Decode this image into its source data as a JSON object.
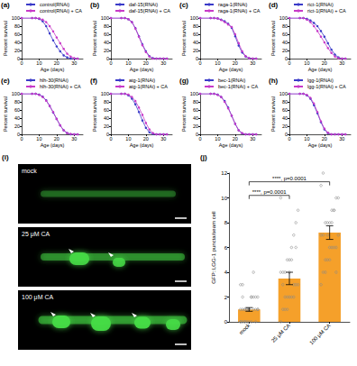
{
  "chart_data": [
    {
      "type": "line",
      "title": "(a)",
      "xlabel": "Age (days)",
      "ylabel": "Percent survival",
      "marker": "circle",
      "legend": "top",
      "x": [
        0,
        6,
        8,
        10,
        12,
        14,
        16,
        18,
        20,
        22,
        24,
        26,
        28,
        30,
        32
      ],
      "xlim": [
        0,
        35
      ],
      "xticks": [
        0,
        10,
        20,
        30
      ],
      "ylim": [
        0,
        100
      ],
      "yticks": [
        0,
        20,
        40,
        60,
        80,
        100
      ],
      "series": [
        {
          "name": "control(RNAi)",
          "color": "#3a3ac8",
          "values": [
            100,
            100,
            100,
            98,
            92,
            80,
            62,
            45,
            30,
            18,
            8,
            3,
            0,
            0,
            0
          ]
        },
        {
          "name": "control(RNAi) + CA",
          "color": "#c83ac8",
          "values": [
            100,
            100,
            100,
            99,
            96,
            90,
            80,
            67,
            52,
            38,
            24,
            12,
            5,
            1,
            0
          ]
        }
      ]
    },
    {
      "type": "line",
      "title": "(b)",
      "xlabel": "Age (days)",
      "ylabel": "Percent survival",
      "marker": "circle",
      "legend": "top",
      "x": [
        0,
        6,
        8,
        10,
        12,
        14,
        16,
        18,
        20,
        22,
        24,
        26,
        28,
        30,
        32
      ],
      "xlim": [
        0,
        35
      ],
      "xticks": [
        0,
        10,
        20,
        30
      ],
      "ylim": [
        0,
        100
      ],
      "yticks": [
        0,
        20,
        40,
        60,
        80,
        100
      ],
      "series": [
        {
          "name": "daf-15(RNAi)",
          "color": "#3a3ac8",
          "values": [
            100,
            100,
            100,
            97,
            90,
            75,
            55,
            35,
            18,
            6,
            1,
            0,
            0,
            0,
            0
          ]
        },
        {
          "name": "daf-15(RNAi) + CA",
          "color": "#c83ac8",
          "values": [
            100,
            100,
            100,
            97,
            90,
            74,
            54,
            33,
            16,
            5,
            0,
            0,
            0,
            0,
            0
          ]
        }
      ]
    },
    {
      "type": "line",
      "title": "(c)",
      "xlabel": "Age (days)",
      "ylabel": "Percent survival",
      "marker": "circle",
      "legend": "top",
      "x": [
        0,
        6,
        8,
        10,
        12,
        14,
        16,
        18,
        20,
        22,
        24,
        26,
        28,
        30,
        32
      ],
      "xlim": [
        0,
        35
      ],
      "xticks": [
        0,
        10,
        20,
        30
      ],
      "ylim": [
        0,
        100
      ],
      "yticks": [
        0,
        20,
        40,
        60,
        80,
        100
      ],
      "series": [
        {
          "name": "raga-1(RNAi)",
          "color": "#3a3ac8",
          "values": [
            100,
            100,
            100,
            99,
            96,
            92,
            86,
            76,
            55,
            32,
            15,
            5,
            1,
            0,
            0
          ]
        },
        {
          "name": "raga-1(RNAi) + CA",
          "color": "#c83ac8",
          "values": [
            100,
            100,
            100,
            99,
            95,
            90,
            84,
            78,
            60,
            38,
            18,
            6,
            1,
            0,
            0
          ]
        }
      ]
    },
    {
      "type": "line",
      "title": "(d)",
      "xlabel": "Age (days)",
      "ylabel": "Percent survival",
      "marker": "circle",
      "legend": "top",
      "x": [
        0,
        6,
        8,
        10,
        12,
        14,
        16,
        18,
        20,
        22,
        24,
        26,
        28,
        30,
        32
      ],
      "xlim": [
        0,
        35
      ],
      "xticks": [
        0,
        10,
        20,
        30
      ],
      "ylim": [
        0,
        100
      ],
      "yticks": [
        0,
        20,
        40,
        60,
        80,
        100
      ],
      "series": [
        {
          "name": "rict-1(RNAi)",
          "color": "#3a3ac8",
          "values": [
            100,
            100,
            100,
            98,
            94,
            88,
            80,
            68,
            54,
            38,
            22,
            10,
            3,
            0,
            0
          ]
        },
        {
          "name": "rict-1(RNAi) + CA",
          "color": "#c83ac8",
          "values": [
            100,
            100,
            100,
            96,
            90,
            80,
            68,
            54,
            40,
            26,
            14,
            5,
            1,
            0,
            0
          ]
        }
      ]
    },
    {
      "type": "line",
      "title": "(e)",
      "xlabel": "Age (days)",
      "ylabel": "Percent survival",
      "marker": "circle",
      "legend": "top",
      "x": [
        0,
        6,
        8,
        10,
        12,
        14,
        16,
        18,
        20,
        22,
        24,
        26,
        28,
        30,
        32
      ],
      "xlim": [
        0,
        35
      ],
      "xticks": [
        0,
        10,
        20,
        30
      ],
      "ylim": [
        0,
        100
      ],
      "yticks": [
        0,
        20,
        40,
        60,
        80,
        100
      ],
      "series": [
        {
          "name": "hlh-30(RNAi)",
          "color": "#3a3ac8",
          "values": [
            100,
            100,
            100,
            98,
            93,
            84,
            70,
            54,
            38,
            22,
            10,
            3,
            0,
            0,
            0
          ]
        },
        {
          "name": "hlh-30(RNAi) + CA",
          "color": "#c83ac8",
          "values": [
            100,
            100,
            100,
            97,
            92,
            83,
            70,
            55,
            38,
            22,
            10,
            3,
            1,
            0,
            0
          ]
        }
      ]
    },
    {
      "type": "line",
      "title": "(f)",
      "xlabel": "Age (days)",
      "ylabel": "Percent survival",
      "marker": "circle",
      "legend": "top",
      "x": [
        0,
        6,
        8,
        10,
        12,
        14,
        16,
        18,
        20,
        22,
        24,
        26,
        28,
        30,
        32
      ],
      "xlim": [
        0,
        35
      ],
      "xticks": [
        0,
        10,
        20,
        30
      ],
      "ylim": [
        0,
        100
      ],
      "yticks": [
        0,
        20,
        40,
        60,
        80,
        100
      ],
      "series": [
        {
          "name": "atg-1(RNAi)",
          "color": "#3a3ac8",
          "values": [
            100,
            100,
            100,
            96,
            88,
            74,
            55,
            34,
            16,
            5,
            1,
            0,
            0,
            0,
            0
          ]
        },
        {
          "name": "atg-1(RNAi) + CA",
          "color": "#c83ac8",
          "values": [
            100,
            100,
            100,
            98,
            92,
            82,
            66,
            48,
            28,
            12,
            3,
            0,
            0,
            0,
            0
          ]
        }
      ]
    },
    {
      "type": "line",
      "title": "(g)",
      "xlabel": "Age (days)",
      "ylabel": "Percent survival",
      "marker": "circle",
      "legend": "top",
      "x": [
        0,
        6,
        8,
        10,
        12,
        14,
        16,
        18,
        20,
        22,
        24,
        26,
        28,
        30,
        32
      ],
      "xlim": [
        0,
        35
      ],
      "xticks": [
        0,
        10,
        20,
        30
      ],
      "ylim": [
        0,
        100
      ],
      "yticks": [
        0,
        20,
        40,
        60,
        80,
        100
      ],
      "series": [
        {
          "name": "bec-1(RNAi)",
          "color": "#3a3ac8",
          "values": [
            100,
            100,
            100,
            98,
            92,
            82,
            66,
            46,
            26,
            10,
            2,
            0,
            0,
            0,
            0
          ]
        },
        {
          "name": "bec-1(RNAi) + CA",
          "color": "#c83ac8",
          "values": [
            100,
            100,
            100,
            97,
            92,
            80,
            64,
            46,
            26,
            10,
            3,
            0,
            0,
            0,
            0
          ]
        }
      ]
    },
    {
      "type": "line",
      "title": "(h)",
      "xlabel": "Age (days)",
      "ylabel": "Percent survival",
      "marker": "circle",
      "legend": "top",
      "x": [
        0,
        6,
        8,
        10,
        12,
        14,
        16,
        18,
        20,
        22,
        24,
        26,
        28,
        30,
        32
      ],
      "xlim": [
        0,
        35
      ],
      "xticks": [
        0,
        10,
        20,
        30
      ],
      "ylim": [
        0,
        100
      ],
      "yticks": [
        0,
        20,
        40,
        60,
        80,
        100
      ],
      "series": [
        {
          "name": "lgg-1(RNAi)",
          "color": "#3a3ac8",
          "values": [
            100,
            100,
            100,
            96,
            88,
            72,
            52,
            30,
            12,
            3,
            0,
            0,
            0,
            0,
            0
          ]
        },
        {
          "name": "lgg-1(RNAi) + CA",
          "color": "#c83ac8",
          "values": [
            100,
            100,
            100,
            97,
            90,
            76,
            55,
            32,
            14,
            4,
            0,
            0,
            0,
            0,
            0
          ]
        }
      ]
    },
    {
      "type": "image",
      "title": "(i)",
      "labels": [
        "mock",
        "25 μM CA",
        "100 μM CA"
      ]
    },
    {
      "type": "bar",
      "title": "(j)",
      "ylabel": "GFP::LGG-1 puncta/seam cell",
      "color": "#f5a02a",
      "categories": [
        "mock",
        "25 μM CA",
        "100 μM CA"
      ],
      "values": [
        1.0,
        3.5,
        7.2
      ],
      "errors": [
        0.15,
        0.5,
        0.55
      ],
      "points": [
        [
          0,
          0,
          0,
          0,
          0,
          0,
          1,
          1,
          1,
          1,
          1,
          1,
          1,
          1,
          2,
          2,
          2,
          2,
          3,
          3,
          0,
          1,
          1,
          2,
          4,
          0,
          1,
          0,
          2,
          1
        ],
        [
          0,
          1,
          1,
          2,
          2,
          2,
          3,
          3,
          3,
          4,
          4,
          4,
          5,
          5,
          6,
          7,
          8,
          9,
          10,
          3,
          2,
          1,
          4,
          5,
          2,
          6
        ],
        [
          3,
          4,
          4,
          5,
          5,
          6,
          6,
          6,
          7,
          7,
          7,
          8,
          8,
          8,
          9,
          9,
          10,
          10,
          11,
          12,
          5,
          7,
          6,
          8,
          9,
          4
        ]
      ],
      "ylim": [
        0,
        12
      ],
      "yticks": [
        0,
        2,
        4,
        6,
        8,
        10,
        12
      ],
      "annotations": [
        {
          "from": "mock",
          "to": "25 μM CA",
          "y": 10.2,
          "label": "****, p=0.0001"
        },
        {
          "from": "mock",
          "to": "100 μM CA",
          "y": 11.3,
          "label": "****, p=0.0001"
        }
      ]
    }
  ]
}
